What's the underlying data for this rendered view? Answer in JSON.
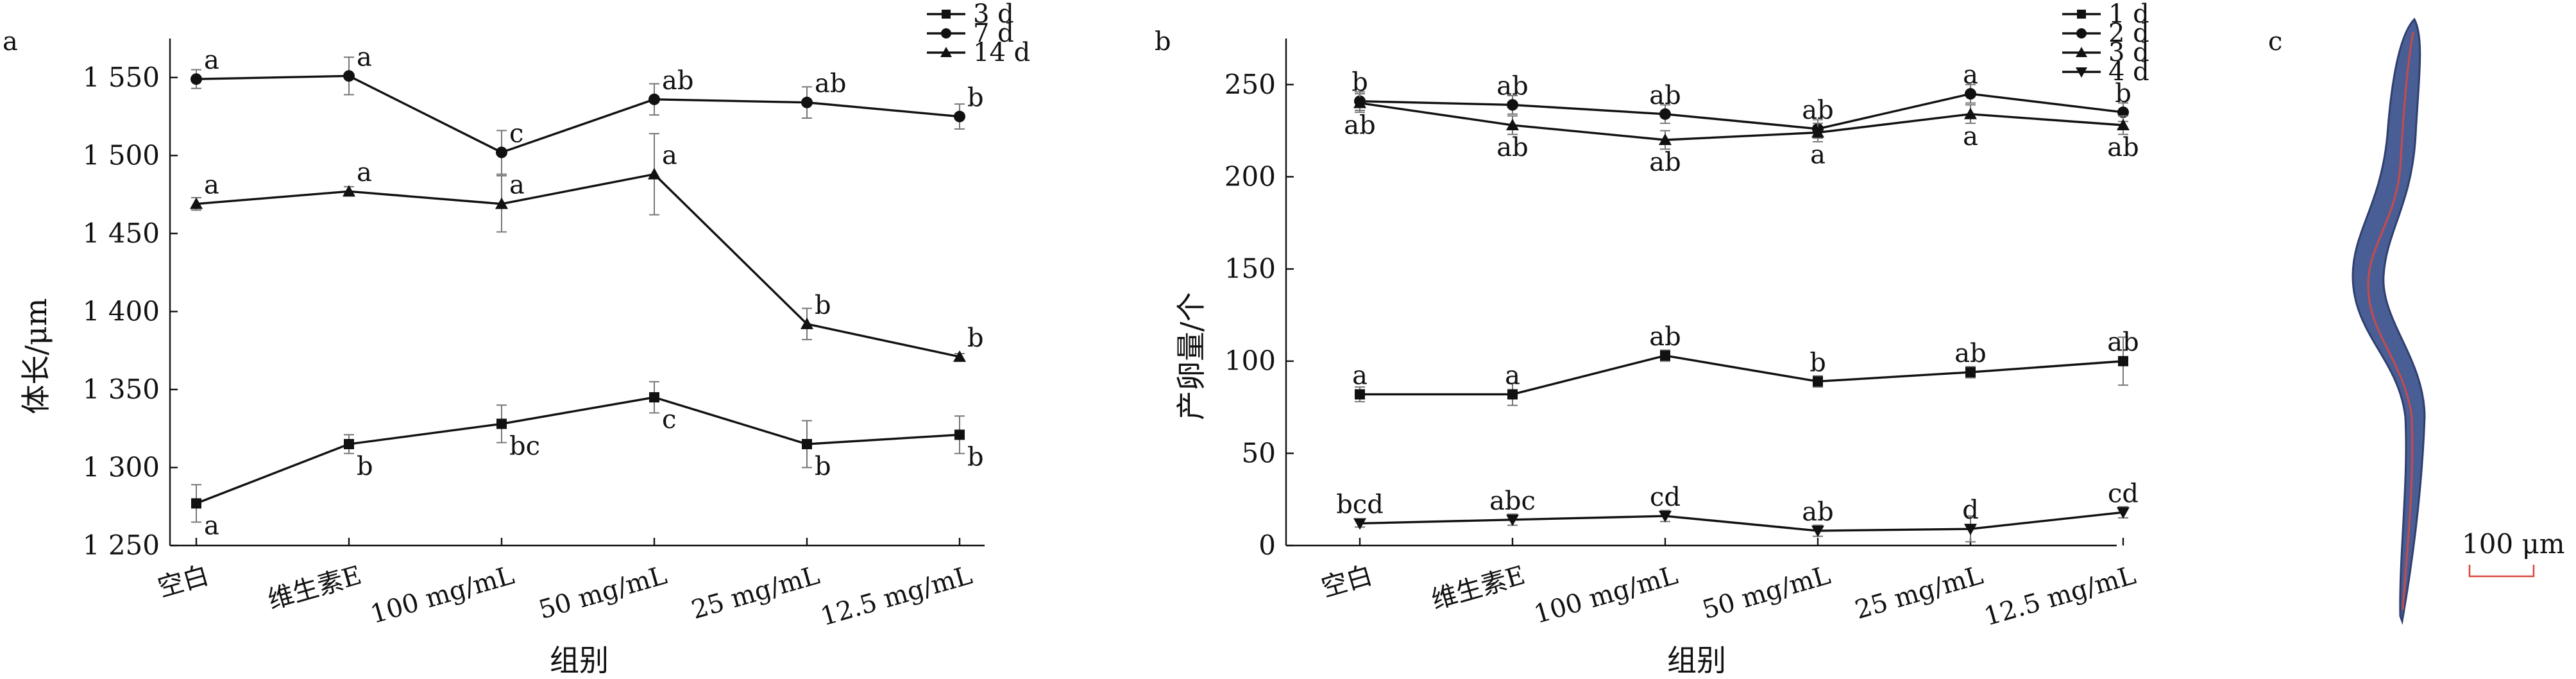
{
  "panel_c": {
    "letter": "c",
    "scale_label": "100 μm",
    "image_semantic": "nematode-body-image"
  },
  "colors": {
    "ink": "#111111",
    "error_bar": "#777777",
    "scale_bar": "#d9473d",
    "worm_body": "#4a5e96",
    "worm_gut": "#c94a4a"
  },
  "chart_data": [
    {
      "panel": "a",
      "type": "line",
      "ylabel": "体长/μm",
      "xlabel": "组别",
      "categories": [
        "空白",
        "维生素E",
        "100 mg/mL",
        "50 mg/mL",
        "25 mg/mL",
        "12.5 mg/mL"
      ],
      "ylim": [
        1250,
        1575
      ],
      "yticks": [
        1250,
        1300,
        1350,
        1400,
        1450,
        1500,
        1550
      ],
      "ytick_labels": [
        "1 250",
        "1 300",
        "1 350",
        "1 400",
        "1 450",
        "1 500",
        "1 550"
      ],
      "legend_position": "top-right",
      "grid": false,
      "series": [
        {
          "name": "3 d",
          "marker": "square",
          "values": [
            1277,
            1315,
            1328,
            1345,
            1315,
            1321
          ],
          "errors": [
            12,
            6,
            12,
            10,
            15,
            12
          ],
          "labels": [
            "a",
            "b",
            "bc",
            "c",
            "b",
            "b"
          ]
        },
        {
          "name": "7 d",
          "marker": "circle",
          "values": [
            1549,
            1551,
            1502,
            1536,
            1534,
            1525
          ],
          "errors": [
            6,
            12,
            14,
            10,
            10,
            8
          ],
          "labels": [
            "a",
            "a",
            "c",
            "ab",
            "ab",
            "b"
          ]
        },
        {
          "name": "14 d",
          "marker": "triangle-up",
          "values": [
            1469,
            1477,
            1469,
            1488,
            1392,
            1371
          ],
          "errors": [
            4,
            3,
            18,
            26,
            10,
            2
          ],
          "labels": [
            "a",
            "a",
            "a",
            "a",
            "b",
            "b"
          ]
        }
      ]
    },
    {
      "panel": "b",
      "type": "line",
      "ylabel": "产卵量/个",
      "xlabel": "组别",
      "categories": [
        "空白",
        "维生素E",
        "100 mg/mL",
        "50 mg/mL",
        "25 mg/mL",
        "12.5 mg/mL"
      ],
      "ylim": [
        0,
        275
      ],
      "yticks": [
        0,
        50,
        100,
        150,
        200,
        250
      ],
      "ytick_labels": [
        "0",
        "50",
        "100",
        "150",
        "200",
        "250"
      ],
      "legend_position": "top-right",
      "grid": false,
      "series": [
        {
          "name": "1 d",
          "marker": "square",
          "values": [
            82,
            82,
            103,
            89,
            94,
            100
          ],
          "errors": [
            4,
            6,
            3,
            3,
            3,
            13
          ],
          "labels": [
            "a",
            "a",
            "ab",
            "b",
            "ab",
            "ab"
          ]
        },
        {
          "name": "2 d",
          "marker": "circle",
          "values": [
            241,
            239,
            234,
            226,
            245,
            235
          ],
          "errors": [
            5,
            5,
            5,
            5,
            5,
            5
          ],
          "labels": [
            "b",
            "ab",
            "ab",
            "ab",
            "a",
            "b"
          ]
        },
        {
          "name": "3 d",
          "marker": "triangle-up",
          "values": [
            240,
            228,
            220,
            224,
            234,
            228
          ],
          "errors": [
            5,
            5,
            5,
            5,
            5,
            5
          ],
          "labels": [
            "ab",
            "ab",
            "ab",
            "a",
            "a",
            "ab"
          ]
        },
        {
          "name": "4 d",
          "marker": "triangle-down",
          "values": [
            12,
            14,
            16,
            8,
            9,
            18
          ],
          "errors": [
            2,
            3,
            3,
            3,
            7,
            3
          ],
          "labels": [
            "bcd",
            "abc",
            "cd",
            "ab",
            "d",
            "cd"
          ]
        }
      ]
    }
  ]
}
